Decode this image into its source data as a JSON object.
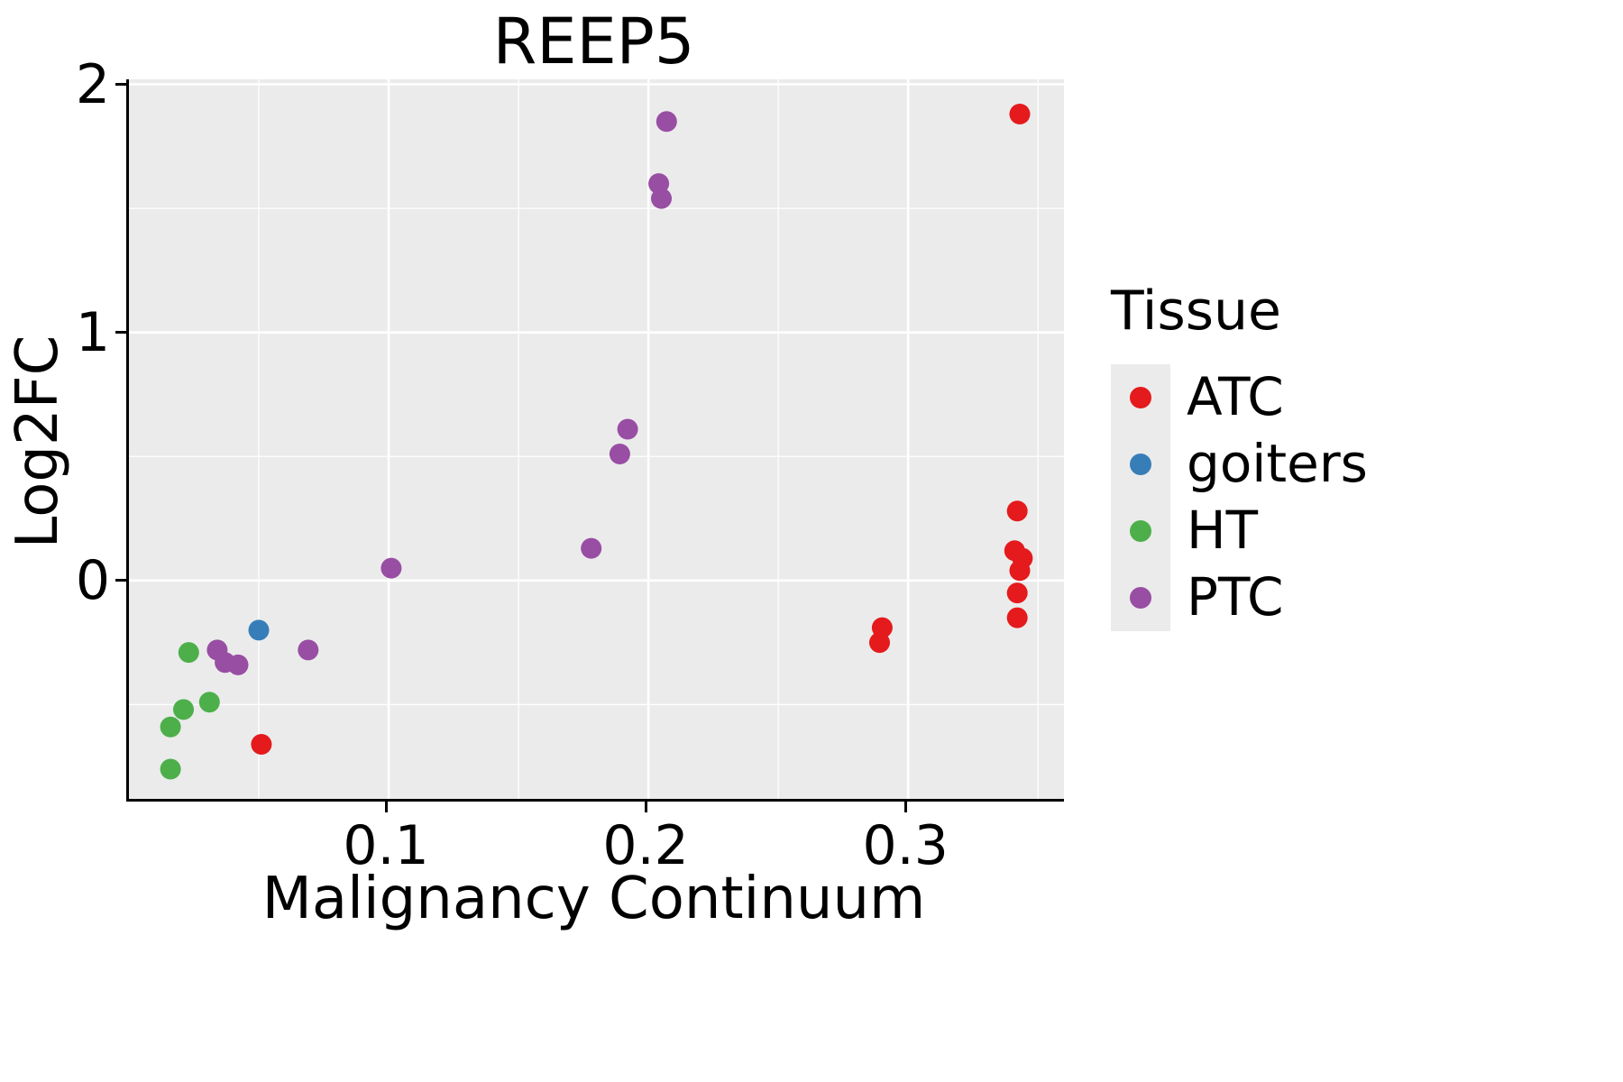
{
  "title": "REEP5",
  "chart_data": {
    "type": "scatter",
    "title": "REEP5",
    "xlabel": "Malignancy Continuum",
    "ylabel": "Log2FC",
    "xlim": [
      0,
      0.36
    ],
    "ylim": [
      -0.88,
      2.02
    ],
    "xticks": [
      0.1,
      0.2,
      0.3
    ],
    "xtick_labels": [
      "0.1",
      "0.2",
      "0.3"
    ],
    "yticks": [
      0,
      1,
      2
    ],
    "ytick_labels": [
      "0",
      "1",
      "2"
    ],
    "x_minor_ticks": [
      0.05,
      0.15,
      0.25,
      0.35
    ],
    "y_minor_ticks": [
      -0.5,
      0.5,
      1.5
    ],
    "grid": true,
    "panel_bg": "#EBEBEB",
    "grid_color": "#FFFFFF",
    "axis_color": "#000000",
    "point_radius": 11.5,
    "legend": {
      "title": "Tissue",
      "position": "right"
    },
    "series": [
      {
        "name": "ATC",
        "color": "#E41A1C",
        "points": [
          [
            0.343,
            1.88
          ],
          [
            0.342,
            0.28
          ],
          [
            0.341,
            0.12
          ],
          [
            0.344,
            0.09
          ],
          [
            0.343,
            0.04
          ],
          [
            0.342,
            -0.05
          ],
          [
            0.342,
            -0.15
          ],
          [
            0.29,
            -0.19
          ],
          [
            0.289,
            -0.25
          ],
          [
            0.051,
            -0.66
          ]
        ]
      },
      {
        "name": "goiters",
        "color": "#377EB8",
        "points": [
          [
            0.05,
            -0.2
          ]
        ]
      },
      {
        "name": "HT",
        "color": "#4DAF4A",
        "points": [
          [
            0.023,
            -0.29
          ],
          [
            0.031,
            -0.49
          ],
          [
            0.021,
            -0.52
          ],
          [
            0.016,
            -0.59
          ],
          [
            0.016,
            -0.76
          ]
        ]
      },
      {
        "name": "PTC",
        "color": "#984EA3",
        "points": [
          [
            0.207,
            1.85
          ],
          [
            0.204,
            1.6
          ],
          [
            0.205,
            1.54
          ],
          [
            0.192,
            0.61
          ],
          [
            0.189,
            0.51
          ],
          [
            0.178,
            0.13
          ],
          [
            0.101,
            0.05
          ],
          [
            0.034,
            -0.28
          ],
          [
            0.037,
            -0.33
          ],
          [
            0.042,
            -0.34
          ],
          [
            0.069,
            -0.28
          ]
        ]
      }
    ]
  }
}
